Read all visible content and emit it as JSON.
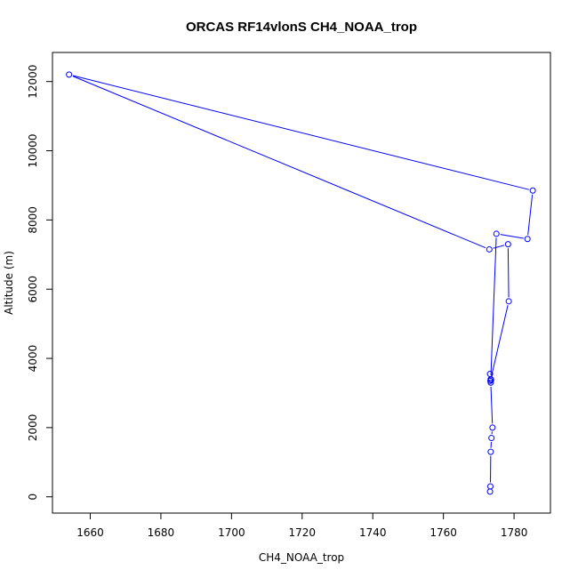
{
  "chart_data": {
    "type": "line",
    "title": "ORCAS RF14vlonS CH4_NOAA_trop",
    "xlabel": "CH4_NOAA_trop",
    "ylabel": "Altitude (m)",
    "xlim": [
      1649.3,
      1790.3
    ],
    "ylim": [
      -470,
      12840
    ],
    "xticks": [
      1660,
      1680,
      1700,
      1720,
      1740,
      1760,
      1780
    ],
    "yticks": [
      0,
      2000,
      4000,
      6000,
      8000,
      10000,
      12000
    ],
    "grid": false,
    "legend": "none",
    "marker": "open-circle",
    "series_color": "#0000ff",
    "series": [
      {
        "x": [
          1773.2,
          1773.3,
          1773.4,
          1773.6,
          1773.9,
          1773.4,
          1773.2,
          1773.4,
          1775.0,
          1783.8,
          1785.3,
          1654.0,
          1773.0,
          1778.3,
          1778.5,
          1773.3,
          1773.5
        ],
        "y": [
          150,
          300,
          1300,
          1700,
          2000,
          3300,
          3550,
          3400,
          7600,
          7450,
          8850,
          12200,
          7150,
          7300,
          5650,
          3350,
          3380
        ]
      }
    ]
  }
}
